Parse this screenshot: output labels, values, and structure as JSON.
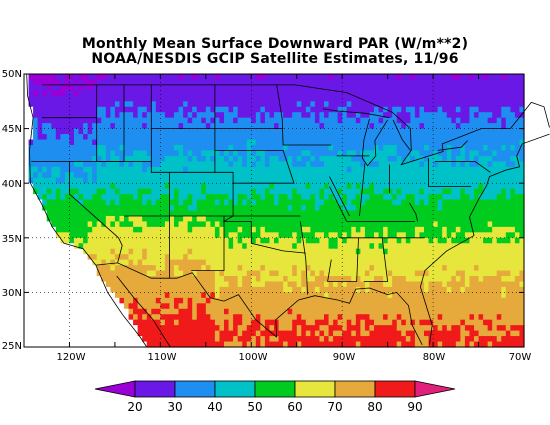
{
  "title": {
    "line1": "Monthly Mean Surface Downward PAR (W/m**2)",
    "line2": "NOAA/NESDIS GCIP Satellite Estimates, 11/96"
  },
  "axes": {
    "lat_labels": [
      "50N",
      "45N",
      "40N",
      "35N",
      "30N",
      "25N"
    ],
    "lon_labels": [
      "120W",
      "110W",
      "100W",
      "90W",
      "80W",
      "70W"
    ]
  },
  "colorbar": {
    "labels": [
      "20",
      "30",
      "40",
      "50",
      "60",
      "70",
      "80",
      "90"
    ],
    "colors": [
      "#9a00d6",
      "#6a18e6",
      "#1e8ff0",
      "#00c0c8",
      "#00cc20",
      "#e6e63c",
      "#e6aa3c",
      "#f01a1a",
      "#e0207a"
    ]
  },
  "chart_data": {
    "type": "heatmap",
    "title": "Monthly Mean Surface Downward PAR (W/m**2)",
    "subtitle": "NOAA/NESDIS GCIP Satellite Estimates, 11/96",
    "xlabel": "",
    "ylabel": "",
    "xlim": [
      -125,
      -70
    ],
    "ylim": [
      25,
      50
    ],
    "units": "W/m**2",
    "levels": [
      20,
      30,
      40,
      50,
      60,
      70,
      80,
      90
    ],
    "zonal_mean_by_latitude": [
      {
        "lat": 50,
        "value": 22
      },
      {
        "lat": 47,
        "value": 28
      },
      {
        "lat": 44,
        "value": 36
      },
      {
        "lat": 41,
        "value": 44
      },
      {
        "lat": 38,
        "value": 52
      },
      {
        "lat": 35,
        "value": 60
      },
      {
        "lat": 32,
        "value": 68
      },
      {
        "lat": 29,
        "value": 75
      },
      {
        "lat": 26,
        "value": 82
      }
    ]
  }
}
